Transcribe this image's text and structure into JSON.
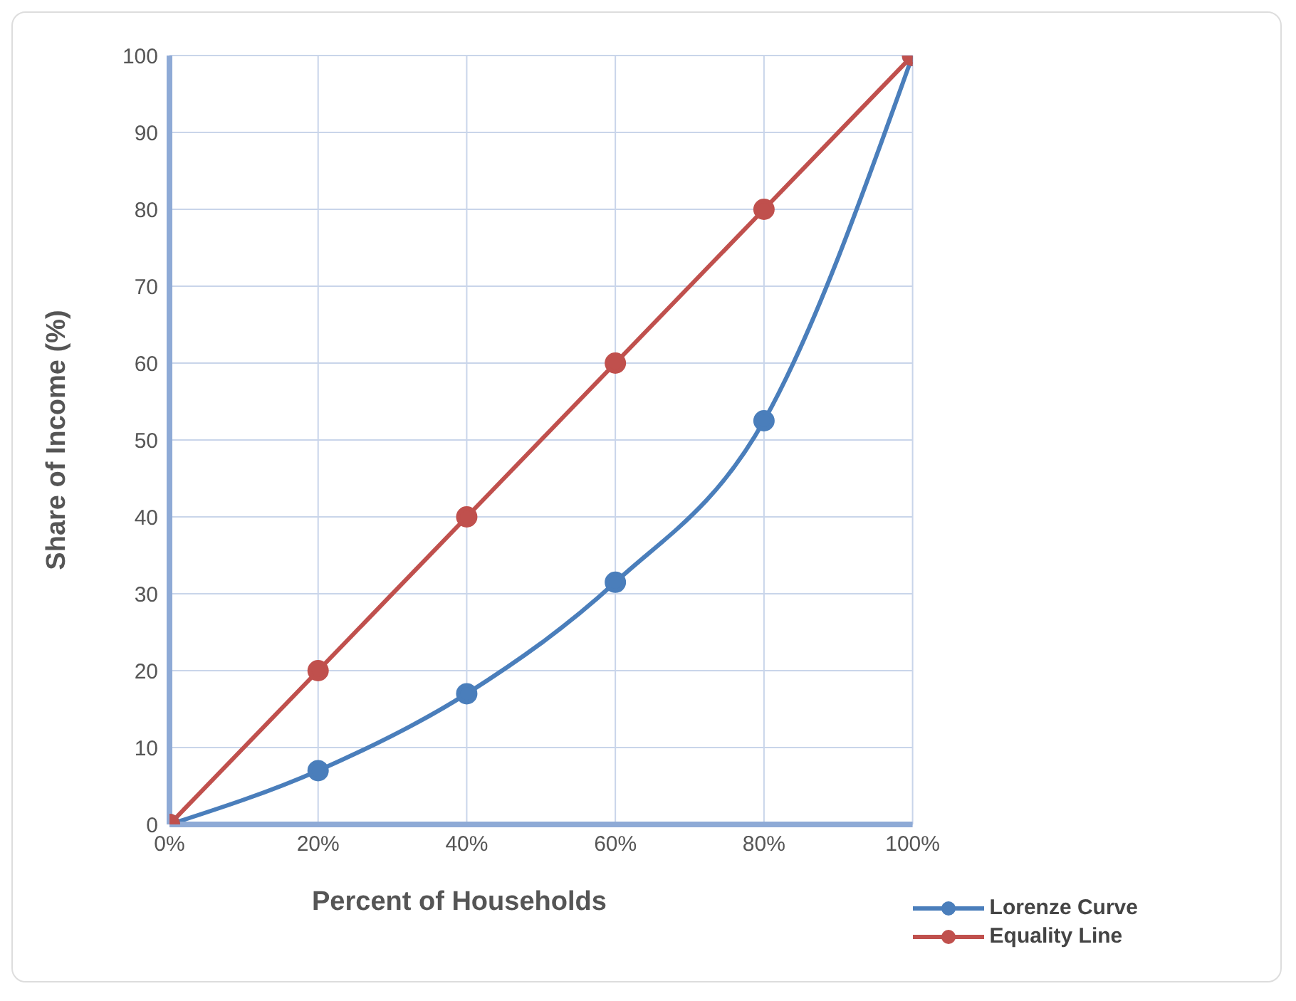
{
  "chart_data": {
    "type": "line",
    "xlabel": "Percent of Households",
    "ylabel": "Share of Income (%)",
    "x": [
      0,
      20,
      40,
      60,
      80,
      100
    ],
    "series": [
      {
        "name": "Lorenze Curve",
        "color": "#4a7ebb",
        "values": [
          0,
          7,
          17,
          31.5,
          52.5,
          100
        ]
      },
      {
        "name": "Equality Line",
        "color": "#c0504d",
        "values": [
          0,
          20,
          40,
          60,
          80,
          100
        ]
      }
    ],
    "xlim": [
      0,
      100
    ],
    "xticks": [
      {
        "value": 0,
        "label": "0%"
      },
      {
        "value": 20,
        "label": "20%"
      },
      {
        "value": 40,
        "label": "40%"
      },
      {
        "value": 60,
        "label": "60%"
      },
      {
        "value": 80,
        "label": "80%"
      },
      {
        "value": 100,
        "label": "100%"
      }
    ],
    "ylim": [
      0,
      100
    ],
    "yticks": [
      0,
      10,
      20,
      30,
      40,
      50,
      60,
      70,
      80,
      90,
      100
    ],
    "grid": true,
    "legend": "bottom right",
    "marker": "circle",
    "line_style": "solid"
  }
}
